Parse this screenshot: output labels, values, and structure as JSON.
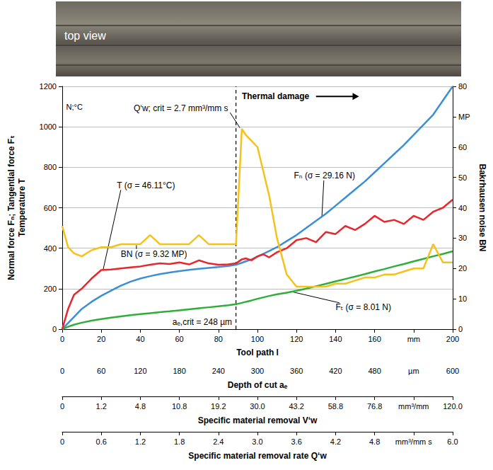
{
  "chart_data": {
    "type": "line",
    "top_view_label": "top view",
    "x": [
      0,
      3,
      6,
      10,
      15,
      20,
      25,
      30,
      35,
      40,
      45,
      50,
      55,
      60,
      65,
      70,
      75,
      80,
      85,
      89,
      92,
      94,
      97,
      100,
      103,
      106,
      110,
      115,
      120,
      125,
      130,
      135,
      140,
      145,
      150,
      155,
      160,
      165,
      170,
      175,
      180,
      185,
      190,
      195,
      200
    ],
    "xlim": [
      0,
      200
    ],
    "xticks": [
      0,
      20,
      40,
      60,
      80,
      100,
      120,
      140,
      160,
      {
        "value": 180,
        "label": "mm"
      },
      200
    ],
    "x_label": "Tool path l",
    "ylim": [
      0,
      1200
    ],
    "yticks": [
      0,
      200,
      400,
      600,
      800,
      1000,
      1200
    ],
    "y_label": "Normal force Fₙ; Tangential force Fₜ\nTemperature T",
    "y_unit": "N;°C",
    "y2lim": [
      0,
      80
    ],
    "y2ticks": [
      0,
      10,
      20,
      30,
      40,
      50,
      60,
      {
        "value": 70,
        "label": "MP"
      },
      80
    ],
    "y2_label": "Bakrhausen noise BN",
    "grid": true,
    "series": [
      {
        "name": "Fₙ",
        "color": "#3a8fd6",
        "values": [
          0,
          30,
          60,
          100,
          135,
          165,
          190,
          215,
          235,
          250,
          262,
          272,
          280,
          287,
          293,
          298,
          303,
          307,
          312,
          318,
          328,
          335,
          345,
          358,
          372,
          386,
          405,
          435,
          465,
          500,
          535,
          570,
          610,
          650,
          690,
          730,
          775,
          820,
          865,
          910,
          960,
          1010,
          1060,
          1130,
          1200
        ]
      },
      {
        "name": "Fₜ",
        "color": "#2fae3a",
        "values": [
          0,
          12,
          22,
          32,
          42,
          50,
          57,
          63,
          69,
          74,
          79,
          84,
          88,
          93,
          98,
          103,
          108,
          113,
          118,
          123,
          130,
          135,
          142,
          150,
          157,
          164,
          172,
          180,
          190,
          200,
          212,
          224,
          236,
          248,
          260,
          272,
          285,
          297,
          310,
          322,
          335,
          347,
          360,
          372,
          385
        ]
      },
      {
        "name": "T",
        "color": "#e8262b",
        "values": [
          0,
          100,
          170,
          200,
          250,
          292,
          295,
          300,
          305,
          310,
          318,
          325,
          322,
          330,
          320,
          340,
          325,
          318,
          320,
          325,
          345,
          350,
          340,
          360,
          370,
          355,
          380,
          400,
          440,
          450,
          430,
          480,
          470,
          510,
          490,
          520,
          560,
          530,
          540,
          520,
          560,
          540,
          580,
          600,
          640
        ]
      },
      {
        "name": "BN",
        "color": "#f5c21b",
        "axis": "y2",
        "values": [
          34,
          27,
          25,
          24,
          26,
          27,
          27,
          28,
          28,
          28,
          31,
          28,
          28,
          28,
          28,
          31,
          28,
          28,
          28,
          28,
          66,
          64,
          62,
          60,
          52,
          44,
          30,
          18,
          14,
          14,
          14,
          14,
          15,
          15,
          16,
          17,
          17,
          18,
          18,
          19,
          20,
          20,
          28,
          22,
          22
        ]
      }
    ],
    "secondary_x_axes": [
      {
        "label": "Depth of cut aₑ",
        "categories": [
          "0",
          "60",
          "120",
          "180",
          "240",
          "300",
          "360",
          "420",
          "480",
          "µm",
          "600"
        ]
      },
      {
        "label": "Specific material removal V‘w",
        "categories": [
          "0",
          "1.2",
          "4.8",
          "10.8",
          "19.2",
          "30.0",
          "43.2",
          "58.8",
          "76.8",
          "mm³/mm",
          "120.0"
        ]
      },
      {
        "label": "Specific material removal rate Q‘w",
        "categories": [
          "0",
          "0.6",
          "1.2",
          "1.8",
          "2.4",
          "3.0",
          "3.6",
          "4.2",
          "4.8",
          "mm³/mm s",
          "6.0"
        ]
      }
    ],
    "critical_line": {
      "x": 89,
      "line_style": "dashed"
    },
    "annotations": [
      {
        "text": "BN (σ = 9.32 MP)"
      },
      {
        "text": "T (σ = 46.11°C)"
      },
      {
        "text": "Fₙ (σ = 29.16 N)"
      },
      {
        "text": "Fₜ (σ = 8.01 N)"
      },
      {
        "text": "Q‘w; crit = 2.7 mm³/mm s"
      },
      {
        "text": "Thermal damage"
      },
      {
        "text": "aₑ,crit = 248 µm"
      }
    ]
  }
}
